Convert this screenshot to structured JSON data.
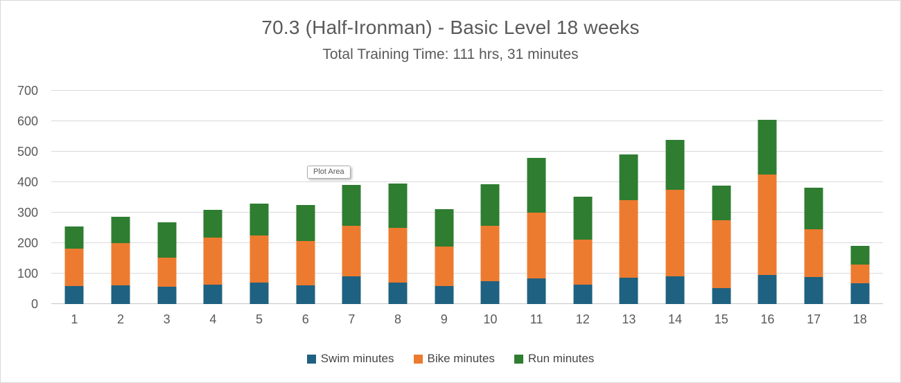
{
  "page": {
    "background": "#ffffff",
    "border_color": "#d7d7d7"
  },
  "header": {
    "title": "70.3 (Half-Ironman) - Basic Level 18 weeks",
    "subtitle": "Total Training Time: 111 hrs, 31 minutes",
    "text_color": "#595959"
  },
  "tooltip": {
    "label": "Plot Area"
  },
  "chart_data": {
    "type": "bar",
    "stacked": true,
    "title": "70.3 (Half-Ironman) - Basic Level 18 weeks",
    "subtitle": "Total Training Time: 111 hrs, 31 minutes",
    "xlabel": "",
    "ylabel": "",
    "ylim": [
      0,
      700
    ],
    "ytick_interval": 100,
    "y_ticks": [
      "0",
      "100",
      "200",
      "300",
      "400",
      "500",
      "600",
      "700"
    ],
    "grid": true,
    "grid_color": "#d9d9d9",
    "axis_line_color": "#c6c6c6",
    "tick_label_color": "#595959",
    "legend_position": "bottom",
    "categories": [
      "1",
      "2",
      "3",
      "4",
      "5",
      "6",
      "7",
      "8",
      "9",
      "10",
      "11",
      "12",
      "13",
      "14",
      "15",
      "16",
      "17",
      "18"
    ],
    "series": [
      {
        "name": "Swim minutes",
        "color": "#1f6180",
        "values": [
          60,
          62,
          56,
          64,
          70,
          61,
          91,
          70,
          59,
          75,
          84,
          64,
          86,
          90,
          53,
          95,
          89,
          69
        ]
      },
      {
        "name": "Bike minutes",
        "color": "#ec7b30",
        "values": [
          121,
          139,
          96,
          154,
          156,
          145,
          167,
          181,
          130,
          181,
          215,
          147,
          254,
          285,
          222,
          330,
          157,
          60
        ]
      },
      {
        "name": "Run minutes",
        "color": "#2e7d30",
        "values": [
          74,
          86,
          116,
          90,
          104,
          120,
          132,
          145,
          122,
          138,
          180,
          141,
          152,
          163,
          114,
          180,
          135,
          61
        ]
      }
    ],
    "weekly_totals": [
      255,
      287,
      268,
      308,
      330,
      326,
      390,
      396,
      311,
      394,
      479,
      352,
      492,
      538,
      389,
      605,
      381,
      190
    ],
    "total_minutes": 6691
  }
}
